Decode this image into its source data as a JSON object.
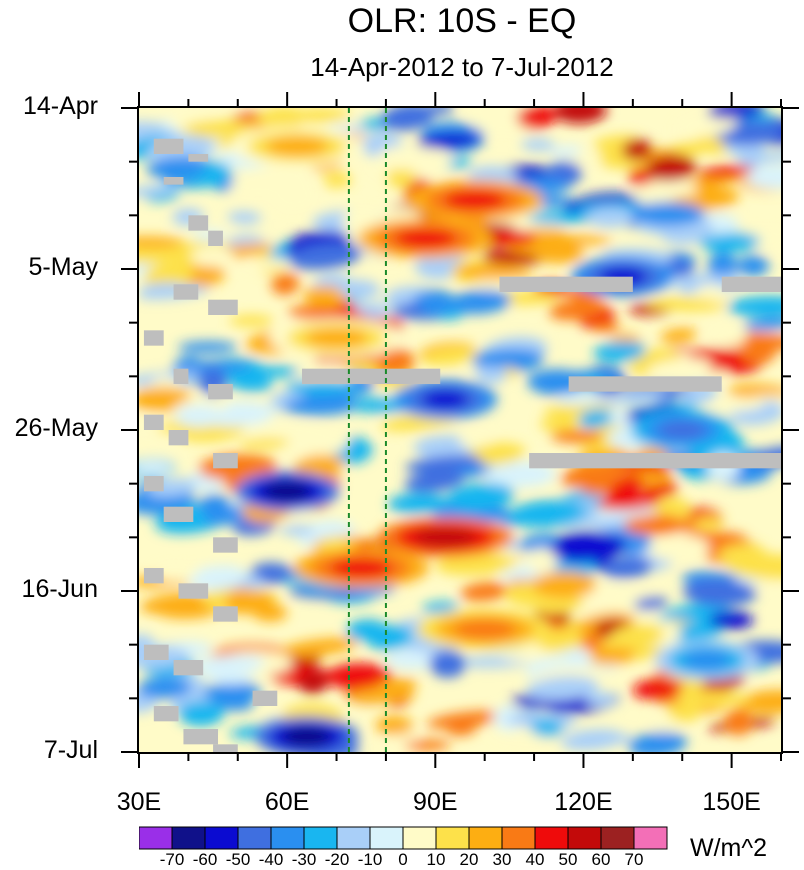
{
  "title": "OLR: 10S - EQ",
  "subtitle": "14-Apr-2012 to 7-Jul-2012",
  "units": "W/m^2",
  "chart_data": {
    "type": "heatmap",
    "title": "OLR: 10S - EQ",
    "subtitle": "14-Apr-2012 to 7-Jul-2012",
    "x_axis": {
      "range": [
        30,
        160
      ],
      "ticks": [
        30,
        60,
        90,
        120,
        150
      ],
      "tick_labels": [
        "30E",
        "60E",
        "90E",
        "120E",
        "150E"
      ]
    },
    "y_axis": {
      "range_days": [
        0,
        84
      ],
      "ticks": [
        0,
        21,
        42,
        63,
        84
      ],
      "tick_labels": [
        "14-Apr",
        "5-May",
        "26-May",
        "16-Jun",
        "7-Jul"
      ],
      "direction": "top-to-bottom"
    },
    "reference_lines": [
      {
        "x": 72.5,
        "style": "dashed",
        "color": "#1a8a2a"
      },
      {
        "x": 80,
        "style": "dashed",
        "color": "#1a8a2a"
      }
    ],
    "missing_data_color": "#bebebe",
    "colorbar": {
      "levels": [
        -70,
        -60,
        -50,
        -40,
        -30,
        -20,
        -10,
        0,
        10,
        20,
        30,
        40,
        50,
        60,
        70
      ],
      "colors": [
        "#9a2fe8",
        "#10118a",
        "#0b0bd1",
        "#3f6fe0",
        "#2a8ff0",
        "#19b6f0",
        "#a9cff8",
        "#d9f3fb",
        "#fffbc8",
        "#fde14a",
        "#fdae12",
        "#f97a15",
        "#ef0b0b",
        "#c30a0a",
        "#9c2121",
        "#f36fb7"
      ]
    },
    "features": [
      {
        "kind": "positive",
        "lon": 62,
        "day": 5,
        "value": 25
      },
      {
        "kind": "positive",
        "lon": 98,
        "day": 12,
        "value": 45
      },
      {
        "kind": "positive",
        "lon": 88,
        "day": 17,
        "value": 40
      },
      {
        "kind": "positive",
        "lon": 70,
        "day": 30,
        "value": 20
      },
      {
        "kind": "positive",
        "lon": 92,
        "day": 56,
        "value": 55
      },
      {
        "kind": "positive",
        "lon": 75,
        "day": 60,
        "value": 40
      },
      {
        "kind": "positive",
        "lon": 100,
        "day": 68,
        "value": 35
      },
      {
        "kind": "negative",
        "lon": 60,
        "day": 50,
        "value": -65
      },
      {
        "kind": "negative",
        "lon": 64,
        "day": 82,
        "value": -65
      },
      {
        "kind": "negative",
        "lon": 128,
        "day": 22,
        "value": -55
      },
      {
        "kind": "negative",
        "lon": 92,
        "day": 38,
        "value": -60
      },
      {
        "kind": "negative",
        "lon": 140,
        "day": 42,
        "value": -45
      },
      {
        "kind": "negative",
        "lon": 145,
        "day": 72,
        "value": -40
      }
    ]
  }
}
